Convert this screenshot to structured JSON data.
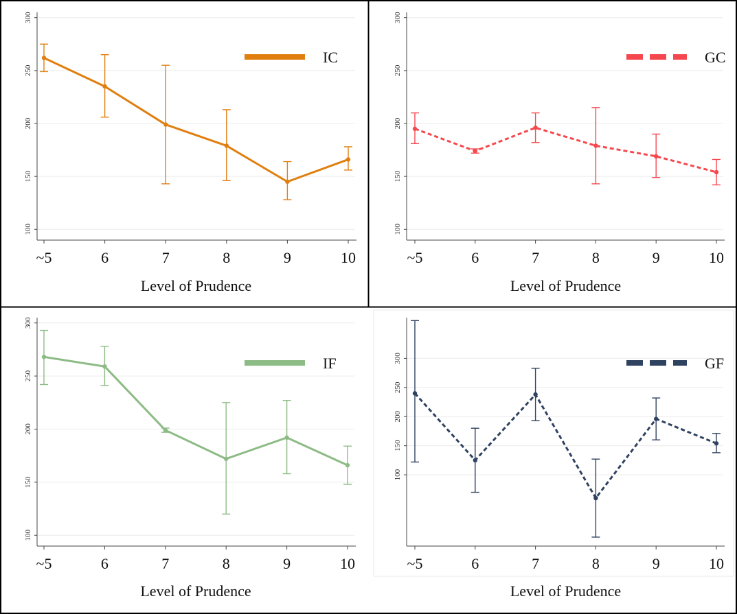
{
  "chart_data": [
    {
      "type": "line",
      "categories": [
        "~5",
        "6",
        "7",
        "8",
        "9",
        "10"
      ],
      "series": [
        {
          "name": "IC",
          "color": "#E07F10",
          "dash": "solid",
          "values": [
            262,
            235,
            199,
            179,
            145,
            166
          ],
          "err_low": [
            249,
            206,
            143,
            146,
            128,
            156
          ],
          "err_high": [
            275,
            265,
            255,
            213,
            164,
            178
          ]
        }
      ],
      "yticks": [
        100,
        150,
        200,
        250,
        300
      ],
      "ylim": [
        95,
        305
      ],
      "xlabel": "Level of Prudence",
      "grid": true,
      "legend": "top-right"
    },
    {
      "type": "line",
      "categories": [
        "~5",
        "6",
        "7",
        "8",
        "9",
        "10"
      ],
      "series": [
        {
          "name": "GC",
          "color": "#F5484E",
          "dash": "dashed",
          "values": [
            195,
            174,
            196,
            179,
            169,
            154
          ],
          "err_low": [
            181,
            172,
            182,
            143,
            149,
            142
          ],
          "err_high": [
            210,
            176,
            210,
            215,
            190,
            166
          ]
        }
      ],
      "yticks": [
        100,
        150,
        200,
        250,
        300
      ],
      "ylim": [
        95,
        305
      ],
      "xlabel": "Level of Prudence",
      "grid": true,
      "legend": "top-right"
    },
    {
      "type": "line",
      "categories": [
        "~5",
        "6",
        "7",
        "8",
        "9",
        "10"
      ],
      "series": [
        {
          "name": "IF",
          "color": "#8DBB85",
          "dash": "solid",
          "values": [
            268,
            259,
            199,
            172,
            192,
            166
          ],
          "err_low": [
            242,
            241,
            197,
            120,
            158,
            148
          ],
          "err_high": [
            293,
            278,
            201,
            225,
            227,
            184
          ]
        }
      ],
      "yticks": [
        100,
        150,
        200,
        250,
        300
      ],
      "ylim": [
        95,
        305
      ],
      "xlabel": "Level of Prudence",
      "grid": true,
      "legend": "top-right"
    },
    {
      "type": "line",
      "categories": [
        "~5",
        "6",
        "7",
        "8",
        "9",
        "10"
      ],
      "series": [
        {
          "name": "GF",
          "color": "#2F4260",
          "dash": "dashed",
          "values": [
            240,
            125,
            238,
            60,
            196,
            154
          ],
          "err_low": [
            122,
            70,
            193,
            -7,
            160,
            138
          ],
          "err_high": [
            365,
            180,
            283,
            127,
            232,
            171
          ]
        }
      ],
      "yticks": [
        100,
        150,
        200,
        250,
        300
      ],
      "ylim": [
        -13,
        370
      ],
      "xlabel": "Level of Prudence",
      "grid": true,
      "legend": "top-right"
    }
  ]
}
